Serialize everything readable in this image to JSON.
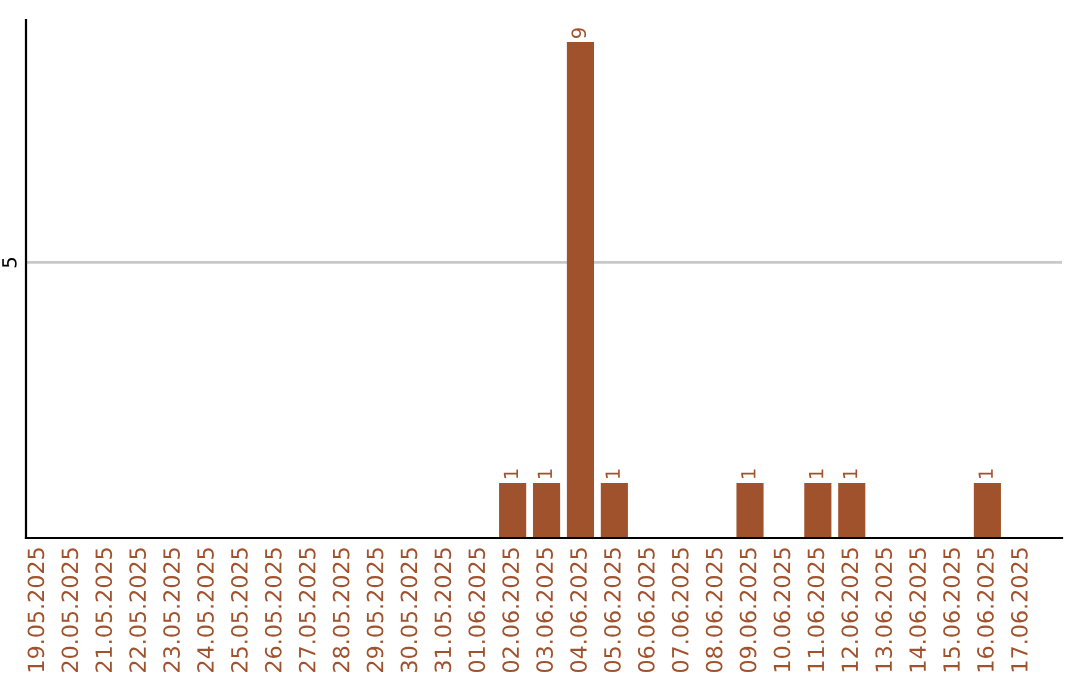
{
  "chart_data": {
    "type": "bar",
    "categories": [
      "19.05.2025",
      "20.05.2025",
      "21.05.2025",
      "22.05.2025",
      "23.05.2025",
      "24.05.2025",
      "25.05.2025",
      "26.05.2025",
      "27.05.2025",
      "28.05.2025",
      "29.05.2025",
      "30.05.2025",
      "31.05.2025",
      "01.06.2025",
      "02.06.2025",
      "03.06.2025",
      "04.06.2025",
      "05.06.2025",
      "06.06.2025",
      "07.06.2025",
      "08.06.2025",
      "09.06.2025",
      "10.06.2025",
      "11.06.2025",
      "12.06.2025",
      "13.06.2025",
      "14.06.2025",
      "15.06.2025",
      "16.06.2025",
      "17.06.2025"
    ],
    "values": [
      null,
      null,
      null,
      null,
      null,
      null,
      null,
      null,
      null,
      null,
      null,
      null,
      null,
      null,
      1,
      1,
      9,
      1,
      null,
      null,
      null,
      1,
      null,
      1,
      1,
      null,
      null,
      null,
      1,
      null
    ],
    "data_labels": true,
    "color": "#a0522d",
    "ylim": [
      0,
      9.4
    ],
    "yticks": [
      5
    ],
    "grid": "y"
  }
}
